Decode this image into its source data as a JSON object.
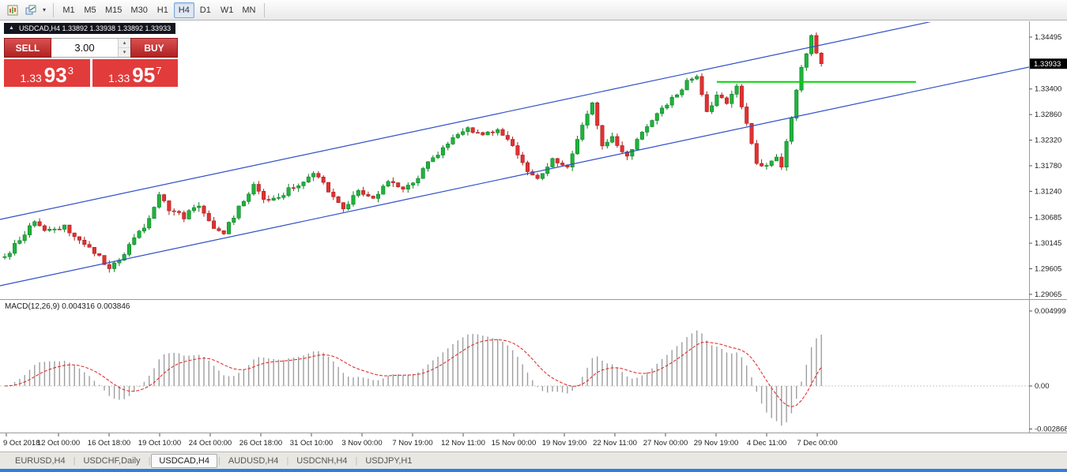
{
  "toolbar": {
    "timeframes": [
      "M1",
      "M5",
      "M15",
      "M30",
      "H1",
      "H4",
      "D1",
      "W1",
      "MN"
    ],
    "active_timeframe": "H4"
  },
  "icons": {
    "title_arrow": "▲",
    "toolbar_caret": "▾",
    "volume_up": "▴",
    "volume_down": "▾"
  },
  "chart": {
    "title": "USDCAD,H4  1.33892 1.33938 1.33892 1.33933",
    "symbol": "USDCAD,H4",
    "ohlc": {
      "open": "1.33892",
      "high": "1.33938",
      "low": "1.33892",
      "close": "1.33933"
    },
    "current_price": "1.33933",
    "price_scale": [
      "1.34495",
      "1.33400",
      "1.32860",
      "1.32320",
      "1.31780",
      "1.31240",
      "1.30685",
      "1.30145",
      "1.29605",
      "1.29065"
    ],
    "time_scale": [
      "9 Oct 2018",
      "12 Oct 00:00",
      "16 Oct 18:00",
      "19 Oct 10:00",
      "24 Oct 00:00",
      "26 Oct 18:00",
      "31 Oct 10:00",
      "3 Nov 00:00",
      "7 Nov 19:00",
      "12 Nov 11:00",
      "15 Nov 00:00",
      "19 Nov 19:00",
      "22 Nov 11:00",
      "27 Nov 00:00",
      "29 Nov 19:00",
      "4 Dec 11:00",
      "7 Dec 00:00"
    ]
  },
  "trade_panel": {
    "sell_label": "SELL",
    "buy_label": "BUY",
    "volume": "3.00",
    "sell_price": {
      "big_figure": "1.33",
      "pips": "93",
      "pipette": "3"
    },
    "buy_price": {
      "big_figure": "1.33",
      "pips": "95",
      "pipette": "7"
    }
  },
  "macd": {
    "label": "MACD(12,26,9) 0.004316 0.003846",
    "main_value": "0.004316",
    "signal_value": "0.003846",
    "scale": [
      "0.004999",
      "0.00",
      "-0.002868"
    ]
  },
  "tabs": {
    "separator": "|",
    "items": [
      "EURUSD,H4",
      "USDCHF,Daily",
      "USDCAD,H4",
      "AUDUSD,H4",
      "USDCNH,H4",
      "USDJPY,H1"
    ],
    "active": "USDCAD,H4"
  },
  "chart_data": {
    "type": "candlestick",
    "symbol": "USDCAD",
    "timeframe": "H4",
    "bar_count": 165,
    "y_axis_range": [
      1.2898,
      1.3481
    ],
    "price_waypoints": [
      [
        0,
        1.2985
      ],
      [
        3,
        1.3025
      ],
      [
        6,
        1.3058
      ],
      [
        9,
        1.304
      ],
      [
        12,
        1.3052
      ],
      [
        15,
        1.302
      ],
      [
        18,
        1.2998
      ],
      [
        21,
        1.2962
      ],
      [
        24,
        1.2995
      ],
      [
        28,
        1.3048
      ],
      [
        31,
        1.3115
      ],
      [
        33,
        1.3085
      ],
      [
        36,
        1.307
      ],
      [
        39,
        1.3095
      ],
      [
        42,
        1.305
      ],
      [
        44,
        1.3038
      ],
      [
        47,
        1.309
      ],
      [
        50,
        1.3135
      ],
      [
        53,
        1.31
      ],
      [
        56,
        1.312
      ],
      [
        59,
        1.314
      ],
      [
        62,
        1.3165
      ],
      [
        65,
        1.3125
      ],
      [
        68,
        1.3085
      ],
      [
        71,
        1.3125
      ],
      [
        74,
        1.3105
      ],
      [
        77,
        1.3145
      ],
      [
        80,
        1.313
      ],
      [
        83,
        1.3155
      ],
      [
        86,
        1.3195
      ],
      [
        89,
        1.3225
      ],
      [
        93,
        1.3255
      ],
      [
        96,
        1.3245
      ],
      [
        99,
        1.325
      ],
      [
        102,
        1.3225
      ],
      [
        104,
        1.318
      ],
      [
        107,
        1.3148
      ],
      [
        110,
        1.319
      ],
      [
        113,
        1.317
      ],
      [
        116,
        1.326
      ],
      [
        118,
        1.3315
      ],
      [
        120,
        1.322
      ],
      [
        122,
        1.324
      ],
      [
        125,
        1.3195
      ],
      [
        128,
        1.325
      ],
      [
        131,
        1.3285
      ],
      [
        134,
        1.332
      ],
      [
        137,
        1.3355
      ],
      [
        139,
        1.3362
      ],
      [
        141,
        1.329
      ],
      [
        143,
        1.333
      ],
      [
        145,
        1.3305
      ],
      [
        147,
        1.3345
      ],
      [
        149,
        1.3265
      ],
      [
        151,
        1.3185
      ],
      [
        153,
        1.3175
      ],
      [
        155,
        1.3195
      ],
      [
        156,
        1.317
      ],
      [
        158,
        1.328
      ],
      [
        160,
        1.339
      ],
      [
        162,
        1.3448
      ],
      [
        163,
        1.342
      ],
      [
        164,
        1.3393
      ]
    ],
    "extremes": {
      "low_bar": 21,
      "low_price": 1.2958,
      "high_bar": 162,
      "high_price": 1.3449
    },
    "channel_lines": [
      {
        "name": "upper",
        "left_price": 1.30646,
        "right_price": 1.35261
      },
      {
        "name": "lower",
        "left_price": 1.29247,
        "right_price": 1.33862
      }
    ],
    "hline": {
      "price": 1.3355,
      "from_bar": 143,
      "to_bar": 183,
      "color": "#00d600"
    },
    "macd_scale_range": [
      -0.002868,
      0.004999
    ],
    "colors": {
      "up": "#1fb33c",
      "up_border": "#0e7d26",
      "down": "#e03232",
      "down_border": "#a81f1f",
      "channel": "#3050c8",
      "macd_bar": "#9e9e9e",
      "macd_signal": "#e02020",
      "price_marker_bg": "#000000",
      "price_marker_fg": "#ffffff"
    }
  }
}
